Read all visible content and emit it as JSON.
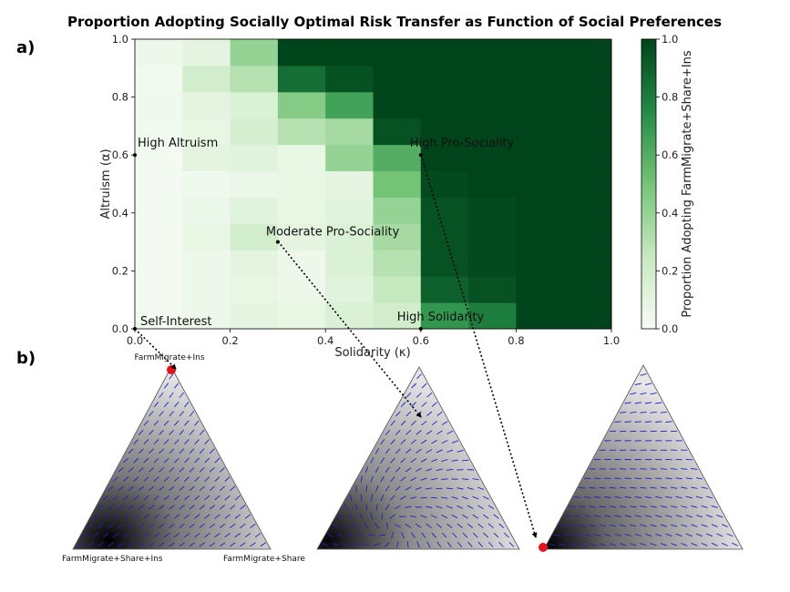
{
  "figure": {
    "title": "Proportion Adopting Socially Optimal Risk Transfer as Function of Social Preferences",
    "panel_a": "a)",
    "panel_b": "b)"
  },
  "colors": {
    "cmap_low": "#f7fcf5",
    "cmap_high": "#00441b",
    "arrow": "#1f1fcc",
    "stable_point": "#e8101a"
  },
  "chart_data": [
    {
      "type": "heatmap",
      "title": "",
      "xlabel": "Solidarity (κ)",
      "ylabel": "Altruism (α)",
      "xlim": [
        0.0,
        1.0
      ],
      "ylim": [
        0.0,
        1.0
      ],
      "x_ticks": [
        "0.0",
        "0.2",
        "0.4",
        "0.6",
        "0.8",
        "1.0"
      ],
      "y_ticks": [
        "0.0",
        "0.2",
        "0.4",
        "0.6",
        "0.8",
        "1.0"
      ],
      "colorbar_label": "Proportion Adopting FarmMigrate+Share+Ins",
      "colorbar_ticks": [
        "0.0",
        "0.2",
        "0.4",
        "0.6",
        "0.8",
        "1.0"
      ],
      "grid_note": "rows from alpha=0.0 (bottom) to alpha=1.0 (top); columns kappa=0.0..1.0",
      "values": [
        [
          0.02,
          0.05,
          0.1,
          0.08,
          0.15,
          0.2,
          0.7,
          0.8,
          1.0,
          1.0
        ],
        [
          0.02,
          0.05,
          0.08,
          0.05,
          0.12,
          0.25,
          0.9,
          0.95,
          1.0,
          1.0
        ],
        [
          0.02,
          0.05,
          0.1,
          0.05,
          0.15,
          0.3,
          0.95,
          0.98,
          1.0,
          1.0
        ],
        [
          0.02,
          0.08,
          0.2,
          0.1,
          0.15,
          0.35,
          0.95,
          0.98,
          1.0,
          1.0
        ],
        [
          0.02,
          0.06,
          0.12,
          0.08,
          0.12,
          0.4,
          0.95,
          0.98,
          1.0,
          1.0
        ],
        [
          0.02,
          0.04,
          0.06,
          0.08,
          0.1,
          0.5,
          0.98,
          1.0,
          1.0,
          1.0
        ],
        [
          0.02,
          0.1,
          0.12,
          0.08,
          0.4,
          0.6,
          1.0,
          1.0,
          1.0,
          1.0
        ],
        [
          0.03,
          0.08,
          0.18,
          0.3,
          0.35,
          0.95,
          1.0,
          1.0,
          1.0,
          1.0
        ],
        [
          0.04,
          0.1,
          0.15,
          0.45,
          0.65,
          1.0,
          1.0,
          1.0,
          1.0,
          1.0
        ],
        [
          0.03,
          0.2,
          0.3,
          0.85,
          0.95,
          1.0,
          1.0,
          1.0,
          1.0,
          1.0
        ],
        [
          0.05,
          0.1,
          0.4,
          1.0,
          1.0,
          1.0,
          1.0,
          1.0,
          1.0,
          1.0
        ]
      ],
      "annotations": [
        {
          "text": "High Altruism",
          "x": 0.0,
          "y": 0.6
        },
        {
          "text": "High Pro-Sociality",
          "x": 0.6,
          "y": 0.6
        },
        {
          "text": "Moderate Pro-Sociality",
          "x": 0.3,
          "y": 0.3
        },
        {
          "text": "Self-Interest",
          "x": 0.0,
          "y": 0.0
        },
        {
          "text": "High Solidarity",
          "x": 0.6,
          "y": 0.0
        }
      ]
    },
    {
      "type": "ternary",
      "vertices": [
        "FarmMigrate+Ins",
        "FarmMigrate+Share+Ins",
        "FarmMigrate+Share"
      ],
      "panels": [
        {
          "source_annotation": "Self-Interest",
          "stable_point": "FarmMigrate+Ins"
        },
        {
          "source_annotation": "Moderate Pro-Sociality",
          "stable_point": "none"
        },
        {
          "source_annotation": "High Pro-Sociality",
          "stable_point": "FarmMigrate+Share+Ins"
        }
      ]
    }
  ]
}
